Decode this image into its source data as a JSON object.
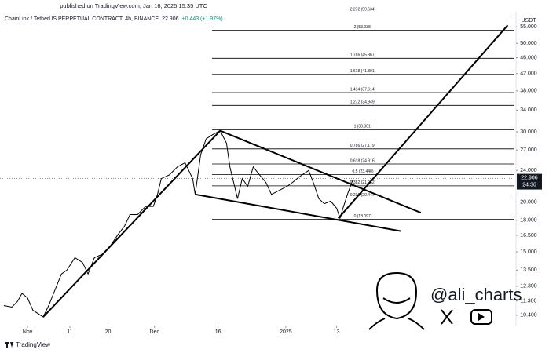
{
  "published": "published on TradingView.com, Jan 16, 2025 15:35 UTC",
  "chart_data": {
    "type": "line",
    "title": "ChainLink / TetherUS PERPETUAL CONTRACT, 4h, BINANCE",
    "last_price": 22.906,
    "last_price_label": "22.906",
    "change_label": "+0.443 (+1.97%)",
    "countdown": "24:36",
    "y_axis_label": "USDT",
    "log_scale": true,
    "grid": false,
    "color": "#000000",
    "x": [
      -5.6,
      -3.7,
      -2.4,
      -1.3,
      0,
      1.3,
      3.7,
      5,
      6.5,
      8,
      9.3,
      11.2,
      13,
      14.3,
      15.8,
      17.7,
      19.5,
      21.4,
      22.9,
      24.2,
      26,
      27.9,
      29.7,
      30.7,
      31.6,
      33.5,
      35.4,
      37.2,
      39,
      39.6,
      40.9,
      42.2,
      43.7,
      45.5,
      47,
      47.8,
      48.9,
      49.6,
      50.7,
      52,
      53.3,
      54.8,
      56.3,
      57.6,
      59.5,
      61.3,
      62.6,
      64.1,
      66.4,
      67.5,
      68.8,
      70.1,
      71.6,
      73,
      73.8,
      74.5,
      75.7,
      76.8
    ],
    "values": [
      11.0,
      10.9,
      11.25,
      11.8,
      11.5,
      10.7,
      10.3,
      11.0,
      12.05,
      13.2,
      13.5,
      14.5,
      14.1,
      13.2,
      14.5,
      14.8,
      15.5,
      16.6,
      17.4,
      18.6,
      18.6,
      19.5,
      19.5,
      20.9,
      22.9,
      23.4,
      24.5,
      25.1,
      22.9,
      20.9,
      26.3,
      28.8,
      29.5,
      30.2,
      28.1,
      24.5,
      21.9,
      20.4,
      22.9,
      21.9,
      24.5,
      23.4,
      22.4,
      20.9,
      21.4,
      21.9,
      22.4,
      23.1,
      24.0,
      22.4,
      20.4,
      19.8,
      20.1,
      19.3,
      18.2,
      19.3,
      21.1,
      22.7
    ],
    "xlim": [
      -6.5,
      115
    ],
    "xticks": [
      {
        "value": 0,
        "label": "Nov"
      },
      {
        "value": 10,
        "label": "11"
      },
      {
        "value": 19,
        "label": "20"
      },
      {
        "value": 30,
        "label": "Dec"
      },
      {
        "value": 45,
        "label": "16"
      },
      {
        "value": 61,
        "label": "2025"
      },
      {
        "value": 73,
        "label": "13"
      }
    ],
    "ylim": [
      9.8,
      60
    ],
    "yticks": [
      {
        "value": 55,
        "label": "55.000"
      },
      {
        "value": 50,
        "label": "50.000"
      },
      {
        "value": 46,
        "label": "46.000"
      },
      {
        "value": 42,
        "label": "42.000"
      },
      {
        "value": 38,
        "label": "38.000"
      },
      {
        "value": 34,
        "label": "34.000"
      },
      {
        "value": 30,
        "label": "30.000"
      },
      {
        "value": 27,
        "label": "27.000"
      },
      {
        "value": 24,
        "label": "24.000"
      },
      {
        "value": 20,
        "label": "20.000"
      },
      {
        "value": 18,
        "label": "18.000"
      },
      {
        "value": 16.5,
        "label": "16.500"
      },
      {
        "value": 15,
        "label": "15.000"
      },
      {
        "value": 13.5,
        "label": "13.500"
      },
      {
        "value": 12.3,
        "label": "12.300"
      },
      {
        "value": 11.3,
        "label": "11.300"
      },
      {
        "value": 10.4,
        "label": "10.400"
      }
    ],
    "fib_levels": [
      {
        "price": 59.634,
        "label": "2.272 (59.634)"
      },
      {
        "price": 53.938,
        "label": "2 (53.938)"
      },
      {
        "price": 45.867,
        "label": "1.786 (45.867)"
      },
      {
        "price": 41.801,
        "label": "1.618 (41.801)"
      },
      {
        "price": 37.614,
        "label": "1.414 (37.614)"
      },
      {
        "price": 34.949,
        "label": "1.272 (34.949)"
      },
      {
        "price": 30.361,
        "label": "1 (30.361)"
      },
      {
        "price": 27.179,
        "label": "0.786 (27.179)"
      },
      {
        "price": 24.916,
        "label": "0.618 (24.916)"
      },
      {
        "price": 23.44,
        "label": "0.5 (23.440)"
      },
      {
        "price": 21.962,
        "label": "0.382 (21.962)"
      },
      {
        "price": 20.447,
        "label": "0.236 (20.447)"
      },
      {
        "price": 18.097,
        "label": "0 (18.097)"
      }
    ],
    "trendlines": [
      {
        "x": [
          3.7,
          45.5
        ],
        "y": [
          10.3,
          30.2
        ]
      },
      {
        "x": [
          45.5,
          92.9
        ],
        "y": [
          30.2,
          18.8
        ]
      },
      {
        "x": [
          39.6,
          88.3
        ],
        "y": [
          20.9,
          16.9
        ]
      },
      {
        "x": [
          73.4,
          113.4
        ],
        "y": [
          18.2,
          55.5
        ]
      }
    ]
  },
  "watermark": "@ali_charts",
  "footer": "TradingView"
}
